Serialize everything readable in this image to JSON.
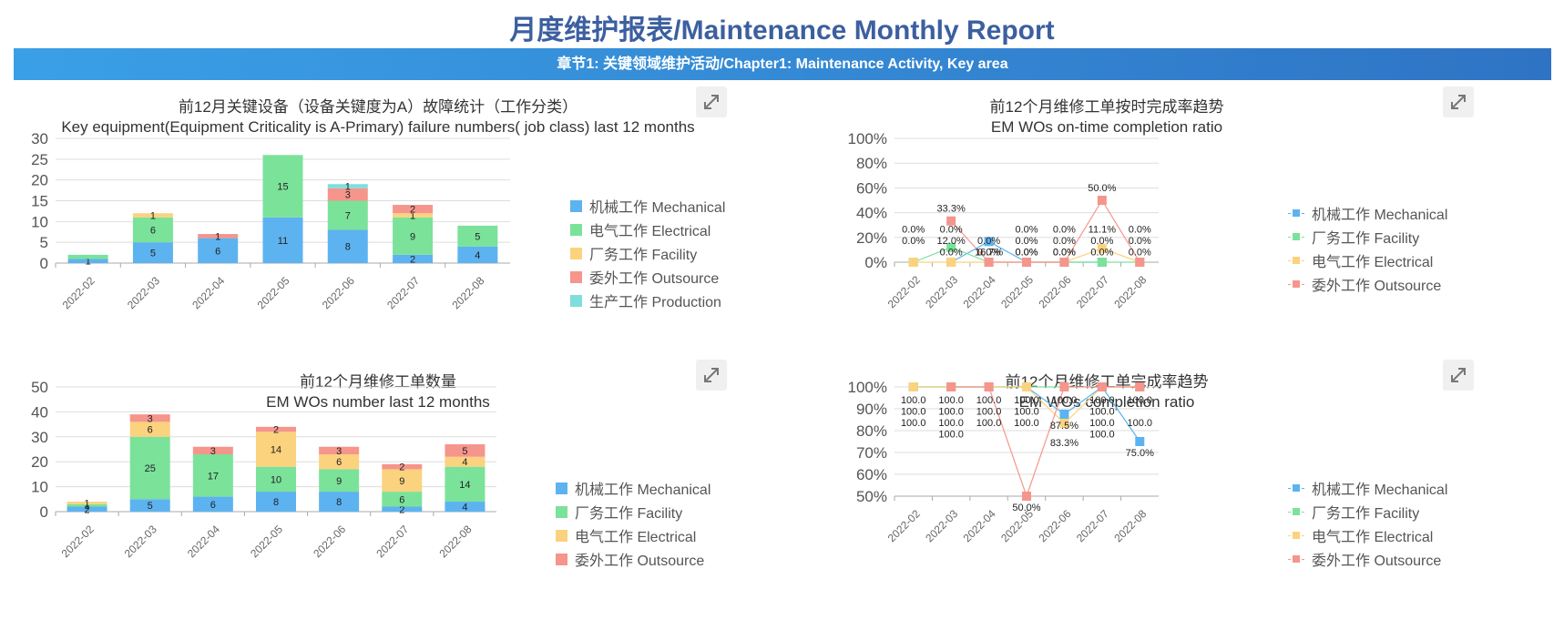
{
  "header": {
    "title": "月度维护报表/Maintenance Monthly Report",
    "chapter": "章节1: 关键领域维护活动/Chapter1: Maintenance Activity, Key area"
  },
  "colors": {
    "mechanical": "#5cb3f0",
    "electrical": "#7be29a",
    "facility": "#fbd27e",
    "outsource": "#f5958c",
    "production": "#7fdedb"
  },
  "chart_data": [
    {
      "id": "failures",
      "type": "bar",
      "stacked": true,
      "title_cn": "前12月关键设备（设备关键度为A）故障统计（工作分类）",
      "title_en": "Key equipment(Equipment Criticality is A-Primary) failure numbers( job class) last 12 months",
      "categories": [
        "2022-02",
        "2022-03",
        "2022-04",
        "2022-05",
        "2022-06",
        "2022-07",
        "2022-08"
      ],
      "ylim": [
        0,
        30
      ],
      "yticks": [
        "0",
        "5",
        "10",
        "15",
        "20",
        "25",
        "30"
      ],
      "series": [
        {
          "name": "机械工作 Mechanical",
          "color_key": "mechanical",
          "values": [
            1,
            5,
            6,
            11,
            8,
            2,
            4
          ],
          "labels": [
            "1",
            "5",
            "6",
            "11",
            "8",
            "2",
            "4"
          ]
        },
        {
          "name": "电气工作 Electrical",
          "color_key": "electrical",
          "values": [
            1,
            6,
            0,
            15,
            7,
            9,
            5
          ],
          "labels": [
            "",
            "6",
            "",
            "15",
            "7",
            "9",
            "5"
          ]
        },
        {
          "name": "厂务工作 Facility",
          "color_key": "facility",
          "values": [
            0,
            1,
            0,
            0,
            0,
            1,
            0
          ],
          "labels": [
            "",
            "1",
            "",
            "",
            "",
            "1",
            ""
          ]
        },
        {
          "name": "委外工作 Outsource",
          "color_key": "outsource",
          "values": [
            0,
            0,
            1,
            0,
            3,
            2,
            0
          ],
          "labels": [
            "",
            "",
            "1",
            "",
            "3",
            "2",
            ""
          ]
        },
        {
          "name": "生产工作 Production",
          "color_key": "production",
          "values": [
            0,
            0,
            0,
            0,
            1,
            0,
            0
          ],
          "labels": [
            "",
            "",
            "",
            "",
            "1",
            "",
            ""
          ]
        }
      ]
    },
    {
      "id": "wo_count",
      "type": "bar",
      "stacked": true,
      "title_cn": "前12个月维修工单数量",
      "title_en": "EM WOs number last 12 months",
      "categories": [
        "2022-02",
        "2022-03",
        "2022-04",
        "2022-05",
        "2022-06",
        "2022-07",
        "2022-08"
      ],
      "ylim": [
        0,
        50
      ],
      "yticks": [
        "0",
        "10",
        "20",
        "30",
        "40",
        "50"
      ],
      "series": [
        {
          "name": "机械工作 Mechanical",
          "color_key": "mechanical",
          "values": [
            2,
            5,
            6,
            8,
            8,
            2,
            4
          ],
          "labels": [
            "2",
            "5",
            "6",
            "8",
            "8",
            "2",
            "4"
          ]
        },
        {
          "name": "厂务工作 Facility",
          "color_key": "electrical",
          "values": [
            1,
            25,
            17,
            10,
            9,
            6,
            14
          ],
          "labels": [
            "1",
            "25",
            "17",
            "10",
            "9",
            "6",
            "14"
          ]
        },
        {
          "name": "电气工作 Electrical",
          "color_key": "facility",
          "values": [
            1,
            6,
            0,
            14,
            6,
            9,
            4
          ],
          "labels": [
            "1",
            "6",
            "",
            "14",
            "6",
            "9",
            "4"
          ]
        },
        {
          "name": "委外工作 Outsource",
          "color_key": "outsource",
          "values": [
            0,
            3,
            3,
            2,
            3,
            2,
            5
          ],
          "labels": [
            "",
            "3",
            "3",
            "2",
            "3",
            "2",
            "5"
          ]
        }
      ]
    },
    {
      "id": "ontime",
      "type": "line",
      "title_cn": "前12个月维修工单按时完成率趋势",
      "title_en": "EM WOs on-time completion ratio",
      "categories": [
        "2022-02",
        "2022-03",
        "2022-04",
        "2022-05",
        "2022-06",
        "2022-07",
        "2022-08"
      ],
      "ylim": [
        0,
        100
      ],
      "yticks": [
        "0%",
        "20%",
        "40%",
        "60%",
        "80%",
        "100%"
      ],
      "series": [
        {
          "name": "机械工作 Mechanical",
          "color_key": "mechanical",
          "values": [
            null,
            0,
            16.7,
            0,
            0,
            0,
            null
          ],
          "labels": [
            "",
            "0.0%",
            "16.7%",
            "0.0%",
            "0.0%",
            "0.0%",
            ""
          ]
        },
        {
          "name": "厂务工作 Facility",
          "color_key": "electrical",
          "values": [
            0,
            12,
            0,
            0,
            0,
            0,
            0
          ],
          "labels": [
            "0.0%",
            "12.0%",
            "0.0%",
            "0.0%",
            "0.0%",
            "0.0%",
            "0.0%"
          ]
        },
        {
          "name": "电气工作 Electrical",
          "color_key": "facility",
          "values": [
            0,
            0,
            null,
            0,
            0,
            11.1,
            0
          ],
          "labels": [
            "0.0%",
            "0.0%",
            "",
            "0.0%",
            "0.0%",
            "11.1%",
            "0.0%"
          ]
        },
        {
          "name": "委外工作 Outsource",
          "color_key": "outsource",
          "values": [
            null,
            33.3,
            0,
            0,
            0,
            50,
            0
          ],
          "labels": [
            "",
            "33.3%",
            "0.0%",
            "0.0%",
            "0.0%",
            "50.0%",
            "0.0%"
          ]
        }
      ]
    },
    {
      "id": "completion",
      "type": "line",
      "title_cn": "前12个月维修工单完成率趋势",
      "title_en": "EM WOs completion ratio",
      "categories": [
        "2022-02",
        "2022-03",
        "2022-04",
        "2022-05",
        "2022-06",
        "2022-07",
        "2022-08"
      ],
      "ylim": [
        50,
        100
      ],
      "yticks": [
        "50%",
        "60%",
        "70%",
        "80%",
        "90%",
        "100%"
      ],
      "series": [
        {
          "name": "机械工作 Mechanical",
          "color_key": "mechanical",
          "values": [
            100,
            100,
            100,
            100,
            87.5,
            100,
            75
          ],
          "labels": [
            "100.0",
            "100.0",
            "100.0",
            "100.0",
            "87.5%",
            "100.0",
            "75.0%"
          ]
        },
        {
          "name": "厂务工作 Facility",
          "color_key": "electrical",
          "values": [
            100,
            100,
            100,
            100,
            100,
            100,
            100
          ],
          "labels": [
            "100.0",
            "100.0",
            "100.0",
            "100.0",
            "100.0",
            "100.0",
            "100.0"
          ]
        },
        {
          "name": "电气工作 Electrical",
          "color_key": "facility",
          "values": [
            100,
            100,
            100,
            100,
            83.3,
            100,
            100
          ],
          "labels": [
            "100.0",
            "100.0",
            "100.0",
            "100.0",
            "83.3%",
            "100.0",
            "100.0"
          ]
        },
        {
          "name": "委外工作 Outsource",
          "color_key": "outsource",
          "values": [
            null,
            100,
            100,
            50,
            100,
            100,
            100
          ],
          "labels": [
            "",
            "100.0",
            "",
            "50.0%",
            "",
            "100.0",
            ""
          ]
        }
      ]
    }
  ]
}
